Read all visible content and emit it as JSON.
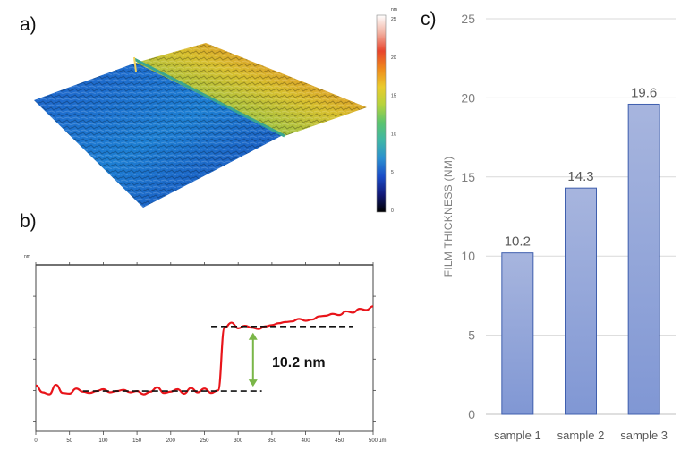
{
  "panels": {
    "a": "a)",
    "b": "b)",
    "c": "c)"
  },
  "colors": {
    "bar_fill_top": "#a7b5de",
    "bar_fill_bottom": "#8097d4",
    "bar_edge": "#3f5fae",
    "profile_line": "#e8141a",
    "step_arrow": "#7ab648",
    "grid": "#d9d9d9"
  },
  "surface": {
    "colorbar_unit": "nm",
    "colorbar_ticks": [
      "25",
      "20",
      "15",
      "10",
      "5",
      "0"
    ],
    "colorbar_colors": [
      "#ffffff",
      "#f2b0a0",
      "#e8442c",
      "#ef8a1c",
      "#eacb2c",
      "#b5d33d",
      "#5bc46e",
      "#3fb6a6",
      "#2b8fd0",
      "#1a4cc7",
      "#121a7a",
      "#000000"
    ]
  },
  "profile": {
    "y_unit": "nm",
    "x_unit": "µm",
    "x_ticks": [
      "0",
      "50",
      "100",
      "150",
      "200",
      "250",
      "300",
      "350",
      "400",
      "450",
      "500"
    ],
    "step_label": "10.2 nm"
  },
  "chart_data": [
    {
      "type": "line",
      "x": [
        0,
        10,
        20,
        30,
        40,
        50,
        60,
        70,
        80,
        90,
        100,
        110,
        120,
        130,
        140,
        150,
        160,
        170,
        180,
        190,
        200,
        210,
        220,
        230,
        240,
        250,
        260,
        270,
        280,
        290,
        300,
        310,
        320,
        330,
        340,
        350,
        360,
        370,
        380,
        390,
        400,
        410,
        420,
        430,
        440,
        450,
        460,
        470,
        480,
        490,
        500
      ],
      "y": [
        0.8,
        -0.3,
        -0.6,
        0.9,
        -0.4,
        -0.5,
        0.3,
        -0.2,
        -0.4,
        -0.1,
        0.2,
        -0.3,
        -0.1,
        0.1,
        -0.3,
        -0.1,
        -0.6,
        -0.2,
        0.5,
        -0.4,
        -0.2,
        0.2,
        -0.5,
        0.4,
        -0.3,
        0.3,
        -0.4,
        0.0,
        10.0,
        10.8,
        9.9,
        10.3,
        10.0,
        9.8,
        10.2,
        10.4,
        10.7,
        10.9,
        11.0,
        11.4,
        11.1,
        11.3,
        11.8,
        11.9,
        12.2,
        12.0,
        12.6,
        12.4,
        13.0,
        12.8,
        13.4
      ],
      "annotations": [
        {
          "text": "10.2 nm",
          "type": "step_height"
        }
      ]
    },
    {
      "type": "bar",
      "categories": [
        "sample 1",
        "sample 2",
        "sample 3"
      ],
      "values": [
        10.2,
        14.3,
        19.6
      ],
      "data_labels": [
        "10.2",
        "14.3",
        "19.6"
      ],
      "ylabel": "FILM THICKNESS (NM)",
      "ylim": [
        0,
        25
      ],
      "yticks": [
        0,
        5,
        10,
        15,
        20,
        25
      ],
      "grid": true
    }
  ]
}
